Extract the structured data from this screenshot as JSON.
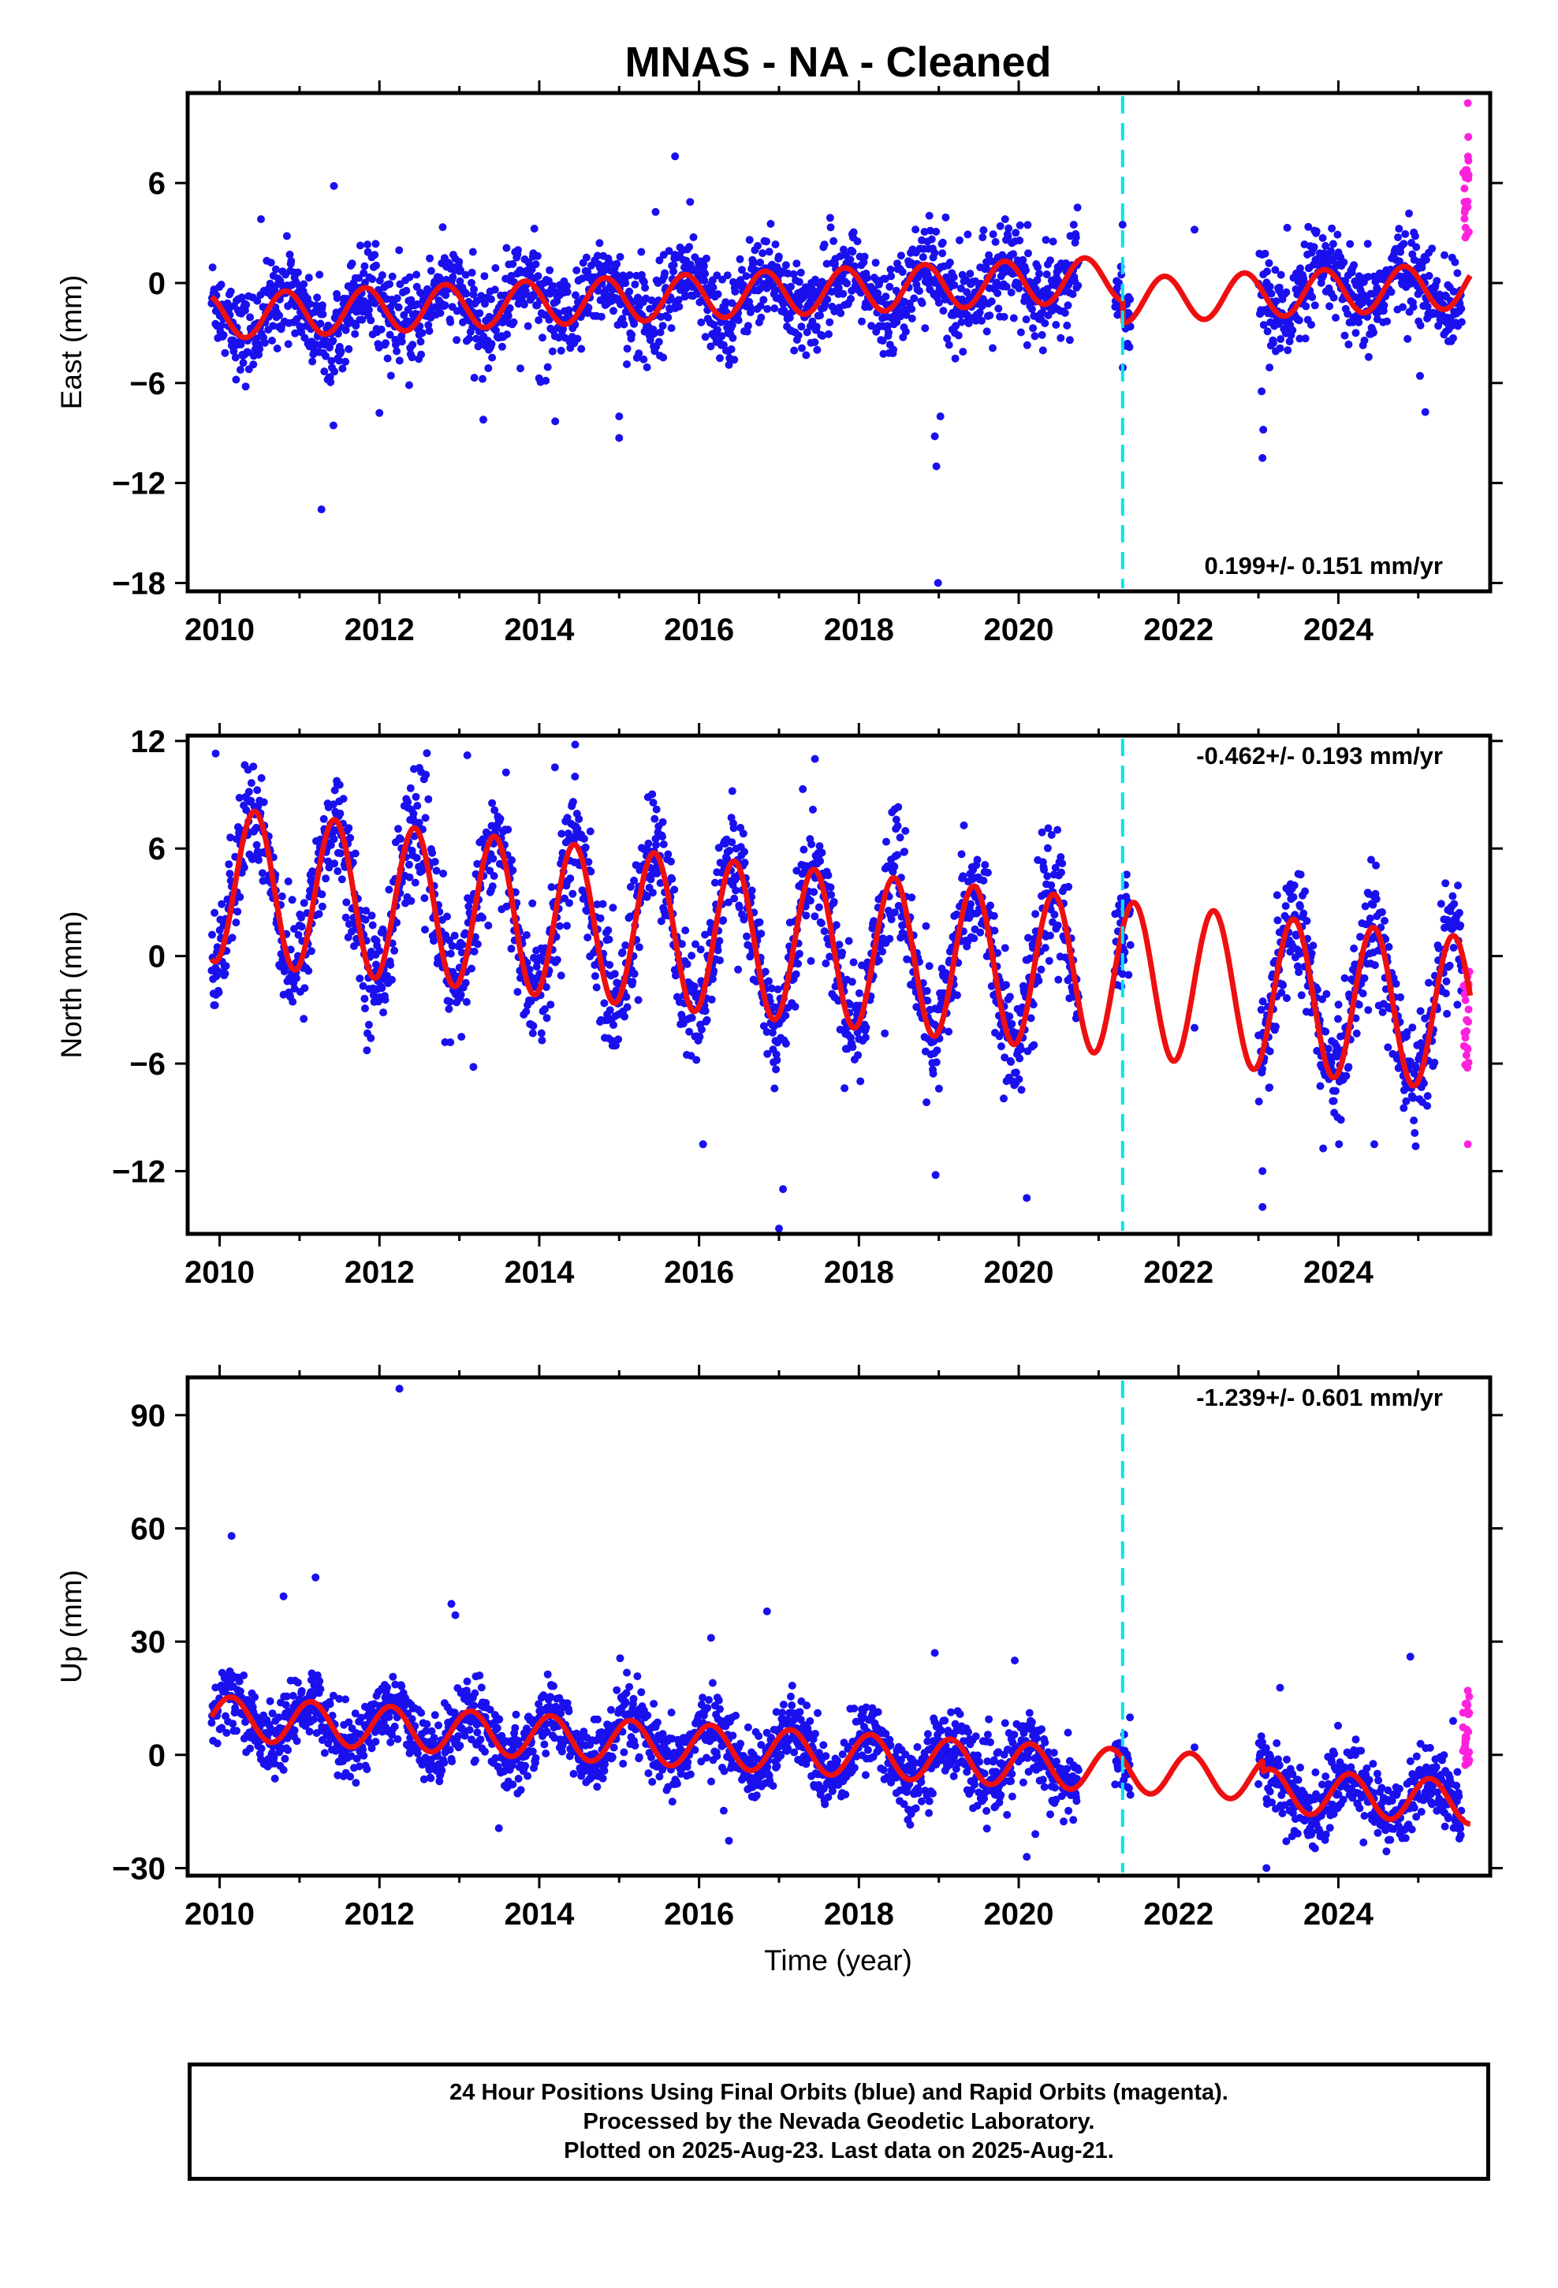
{
  "title": "MNAS  - NA - Cleaned",
  "xlabel": "Time (year)",
  "colors": {
    "final": "#1a10ee",
    "rapid": "#ff22dd",
    "model": "#ee1010",
    "marker": "#00e5ee"
  },
  "notes": [
    "24 Hour Positions Using Final Orbits (blue) and Rapid Orbits (magenta).",
    "Processed by the Nevada Geodetic Laboratory.",
    "Plotted on 2025-Aug-23. Last data on 2025-Aug-21."
  ],
  "chart_data": [
    {
      "type": "scatter",
      "component": "east",
      "ylabel": "East (mm)",
      "rate_text": "0.199+/- 0.151 mm/yr",
      "rate_position": "bottom-right",
      "xlim": [
        2009.6,
        2025.9
      ],
      "ylim": [
        -18.5,
        11.4
      ],
      "xticks": [
        2010,
        2012,
        2014,
        2016,
        2018,
        2020,
        2022,
        2024
      ],
      "xtick_labels": [
        "2010",
        "2012",
        "2014",
        "2016",
        "2018",
        "2020",
        "2022",
        "2024"
      ],
      "yticks": [
        6,
        0,
        -6,
        -12,
        -18
      ],
      "ytick_labels": [
        "6",
        "0",
        "−6",
        "−12",
        "−18"
      ],
      "vertical_marker_x": 2021.3,
      "model": {
        "offset": -0.5,
        "rate": 0.199,
        "t0": 2017.5,
        "amp_cos": 0.6,
        "amp_sin": -1.2,
        "segments": [
          [
            2009.9,
            2021.3,
            0.0
          ],
          [
            2021.3,
            2025.65,
            -1.3
          ]
        ]
      },
      "data_spans": [
        [
          2009.9,
          2020.75
        ],
        [
          2021.2,
          2021.4
        ],
        [
          2023.0,
          2025.55
        ]
      ],
      "scatter_sigma": 1.3,
      "outliers": [
        {
          "x": 2015.7,
          "y": 7.6
        },
        {
          "x": 2018.99,
          "y": -18.0
        },
        {
          "x": 2018.97,
          "y": -11.0
        },
        {
          "x": 2018.95,
          "y": -9.2
        },
        {
          "x": 2019.02,
          "y": -8.0
        },
        {
          "x": 2023.05,
          "y": -10.5
        },
        {
          "x": 2023.06,
          "y": -8.8
        },
        {
          "x": 2023.04,
          "y": -6.5
        },
        {
          "x": 2015.0,
          "y": -9.3
        },
        {
          "x": 2015.0,
          "y": -8.0
        },
        {
          "x": 2013.3,
          "y": -8.2
        },
        {
          "x": 2012.0,
          "y": -7.8
        },
        {
          "x": 2014.2,
          "y": -8.3
        },
        {
          "x": 2021.3,
          "y": 3.5
        },
        {
          "x": 2022.2,
          "y": 3.2
        }
      ],
      "rapid": {
        "x_start": 2025.56,
        "x_end": 2025.64,
        "y_min": 2.5,
        "y_max": 9.0,
        "top": 10.8
      }
    },
    {
      "type": "scatter",
      "component": "north",
      "ylabel": "North (mm)",
      "rate_text": "-0.462+/- 0.193 mm/yr",
      "rate_position": "top-right",
      "xlim": [
        2009.6,
        2025.9
      ],
      "ylim": [
        -15.5,
        12.3
      ],
      "xticks": [
        2010,
        2012,
        2014,
        2016,
        2018,
        2020,
        2022,
        2024
      ],
      "xtick_labels": [
        "2010",
        "2012",
        "2014",
        "2016",
        "2018",
        "2020",
        "2022",
        "2024"
      ],
      "yticks": [
        12,
        6,
        0,
        -6,
        -12
      ],
      "ytick_labels": [
        "12",
        "6",
        "0",
        "−6",
        "−12"
      ],
      "vertical_marker_x": 2021.3,
      "model": {
        "offset": 0.5,
        "rate": -0.462,
        "t0": 2017.5,
        "amp_cos": -4.0,
        "amp_sin": 1.6,
        "segments": [
          [
            2009.9,
            2025.65,
            0.0
          ]
        ]
      },
      "data_spans": [
        [
          2009.9,
          2020.75
        ],
        [
          2021.2,
          2021.4
        ],
        [
          2023.0,
          2025.55
        ]
      ],
      "scatter_sigma": 1.6,
      "outliers": [
        {
          "x": 2009.95,
          "y": 11.3
        },
        {
          "x": 2014.45,
          "y": 11.8
        },
        {
          "x": 2013.1,
          "y": 11.2
        },
        {
          "x": 2012.5,
          "y": 10.5
        },
        {
          "x": 2017.0,
          "y": -15.2
        },
        {
          "x": 2017.05,
          "y": -13.0
        },
        {
          "x": 2017.45,
          "y": 11.0
        },
        {
          "x": 2018.45,
          "y": 8.2
        },
        {
          "x": 2020.1,
          "y": -13.5
        },
        {
          "x": 2023.05,
          "y": -14.0
        },
        {
          "x": 2023.05,
          "y": -12.0
        },
        {
          "x": 2016.05,
          "y": -10.5
        },
        {
          "x": 2021.3,
          "y": -1.0
        },
        {
          "x": 2022.2,
          "y": -4.0
        },
        {
          "x": 2024.45,
          "y": -10.5
        }
      ],
      "rapid": {
        "x_start": 2025.56,
        "x_end": 2025.64,
        "y_min": -6.5,
        "y_max": -0.5,
        "top": -10.5
      }
    },
    {
      "type": "scatter",
      "component": "up",
      "ylabel": "Up (mm)",
      "rate_text": "-1.239+/- 0.601 mm/yr",
      "rate_position": "top-right",
      "xlim": [
        2009.6,
        2025.9
      ],
      "ylim": [
        -32,
        100
      ],
      "xticks": [
        2010,
        2012,
        2014,
        2016,
        2018,
        2020,
        2022,
        2024
      ],
      "xtick_labels": [
        "2010",
        "2012",
        "2014",
        "2016",
        "2018",
        "2020",
        "2022",
        "2024"
      ],
      "yticks": [
        90,
        60,
        30,
        0,
        -30
      ],
      "ytick_labels": [
        "90",
        "60",
        "30",
        "0",
        "−30"
      ],
      "vertical_marker_x": 2021.3,
      "model": {
        "offset": 0.5,
        "rate": -1.239,
        "t0": 2017.5,
        "amp_cos": 3.5,
        "amp_sin": 4.5,
        "segments": [
          [
            2009.9,
            2023.05,
            0.0
          ],
          [
            2023.05,
            2025.65,
            -3.0
          ]
        ]
      },
      "data_spans": [
        [
          2009.9,
          2020.75
        ],
        [
          2021.2,
          2021.4
        ],
        [
          2023.0,
          2025.55
        ]
      ],
      "scatter_sigma": 4.5,
      "outliers": [
        {
          "x": 2012.25,
          "y": 97.0
        },
        {
          "x": 2010.15,
          "y": 58.0
        },
        {
          "x": 2011.2,
          "y": 47.0
        },
        {
          "x": 2010.8,
          "y": 42.0
        },
        {
          "x": 2012.9,
          "y": 40.0
        },
        {
          "x": 2012.95,
          "y": 37.0
        },
        {
          "x": 2016.15,
          "y": 31.0
        },
        {
          "x": 2016.85,
          "y": 38.0
        },
        {
          "x": 2018.95,
          "y": 27.0
        },
        {
          "x": 2019.95,
          "y": 25.0
        },
        {
          "x": 2023.1,
          "y": -30.0
        },
        {
          "x": 2020.1,
          "y": -27.0
        },
        {
          "x": 2021.3,
          "y": -8.0
        },
        {
          "x": 2022.2,
          "y": 2.0
        },
        {
          "x": 2024.9,
          "y": 26.0
        }
      ],
      "rapid": {
        "x_start": 2025.56,
        "x_end": 2025.64,
        "y_min": -8.0,
        "y_max": 17.0,
        "top": 17.0
      }
    }
  ]
}
